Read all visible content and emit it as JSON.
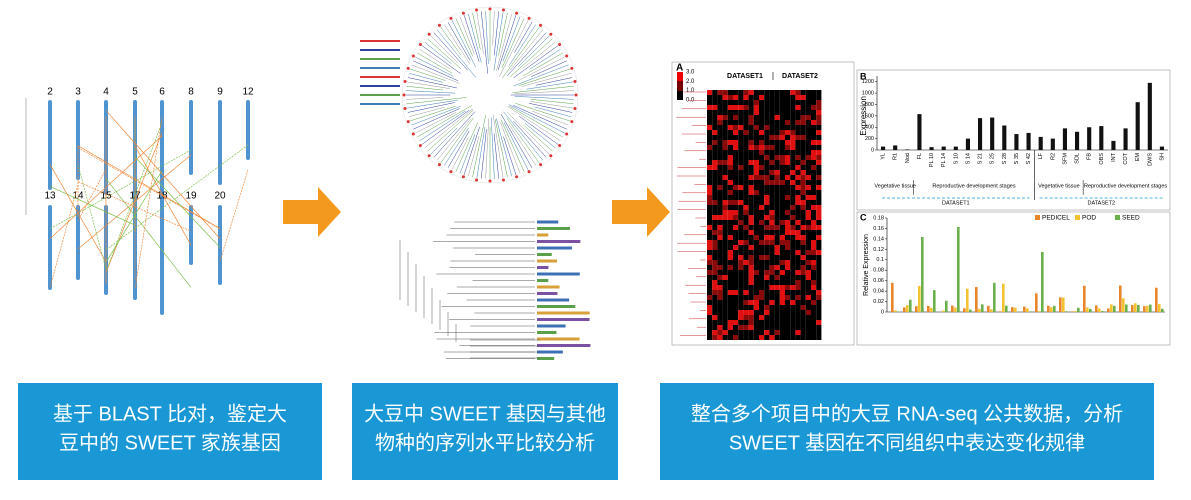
{
  "steps": [
    {
      "caption": [
        "基于 BLAST 比对，鉴定大",
        "豆中的 SWEET 家族基因"
      ]
    },
    {
      "caption": [
        "大豆中 SWEET 基因与其他",
        "物种的序列水平比较分析"
      ]
    },
    {
      "caption": [
        "整合多个项目中的大豆 RNA-seq 公共数据，分析",
        "SWEET 基因在不同组织中表达变化规律"
      ]
    }
  ],
  "chromosome_map": {
    "top_row": [
      "2",
      "3",
      "4",
      "5",
      "6",
      "8",
      "9",
      "12"
    ],
    "bottom_row": [
      "13",
      "14",
      "15",
      "17",
      "18",
      "19",
      "20"
    ]
  },
  "heatmap": {
    "label": "A",
    "datasets": [
      "DATASET1",
      "DATASET2"
    ],
    "scale_ticks": [
      {
        "value": 3,
        "label": "3.0"
      },
      {
        "value": 2,
        "label": "2.0"
      },
      {
        "value": 1,
        "label": "1.0"
      },
      {
        "value": 0,
        "label": "0.0"
      }
    ]
  },
  "chart_data": {
    "type": "bar",
    "label": "B",
    "y_label": "Expression",
    "color": "#111111",
    "categories": [
      "YL",
      "R1",
      "Nod",
      "FL",
      "PL 10",
      "PL 14",
      "S 10",
      "S 14",
      "S 21",
      "S 25",
      "S 28",
      "S 35",
      "S 42",
      "LF",
      "R2",
      "SFM",
      "SDL",
      "FB",
      "OBS",
      "INT",
      "COT",
      "EM",
      "DWS",
      "SH"
    ],
    "values": [
      60,
      80,
      10,
      630,
      50,
      60,
      60,
      200,
      560,
      570,
      430,
      280,
      300,
      230,
      200,
      380,
      320,
      400,
      420,
      160,
      380,
      840,
      1180,
      60
    ],
    "groups": [
      {
        "name": "DATASET1",
        "subgroups": [
          "Vegetative tissue",
          "Reproductive development stages"
        ]
      },
      {
        "name": "DATASET2",
        "subgroups": [
          "Vegetative tissue",
          "Reproductive development stages"
        ]
      }
    ],
    "ylim": [
      0,
      1300
    ],
    "yticks": [
      0,
      200,
      400,
      600,
      800,
      1000,
      1200
    ]
  },
  "expression_panel": {
    "label": "C",
    "y_label": "Relative Expression",
    "legend": [
      "PEDICEL",
      "POD",
      "SEED"
    ],
    "colors": [
      "#e8862a",
      "#f2c230",
      "#6ab04c"
    ],
    "ylim": [
      0,
      0.18
    ],
    "yticks": [
      0,
      0.02,
      0.04,
      0.06,
      0.08,
      0.1,
      0.12,
      0.14,
      0.16,
      0.18
    ]
  }
}
